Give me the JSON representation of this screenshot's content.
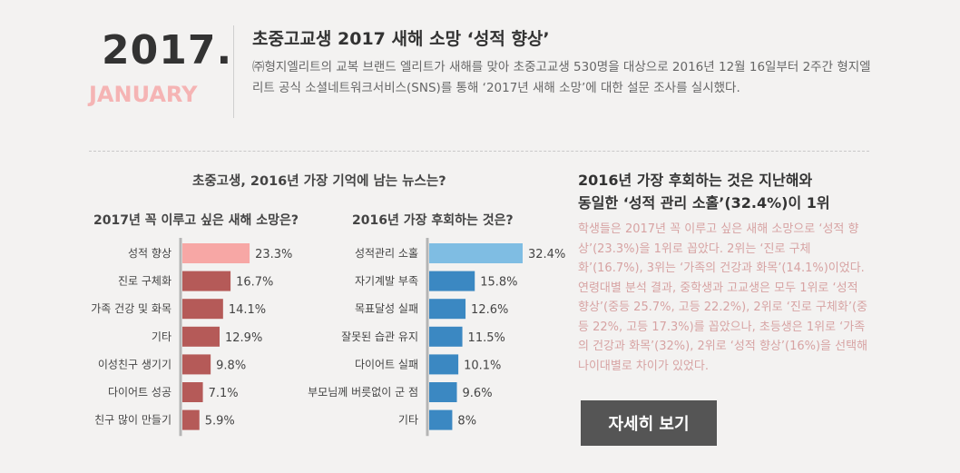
{
  "header": {
    "year": "2017.",
    "month": "JANUARY",
    "title": "초중고교생 2017 새해 소망 ‘성적 향상’",
    "description": "㈜형지엘리트의 교복 브랜드 엘리트가 새해를 맞아 초중고교생 530명을 대상으로 2016년 12월 16일부터 2주간 형지엘리트 공식 소셜네트워크서비스(SNS)를 통해 ‘2017년 새해 소망’에 대한 설문 조사를 실시했다."
  },
  "news_title": "초중고생, 2016년 가장 기억에 남는 뉴스는?",
  "chart_data": [
    {
      "type": "bar",
      "orientation": "horizontal",
      "title": "2017년 꼭 이루고 싶은 새해 소망은?",
      "categories": [
        "성적 향상",
        "진로 구체화",
        "가족 건강 및 화목",
        "기타",
        "이성친구 생기기",
        "다이어트 성공",
        "친구 많이 만들기"
      ],
      "values": [
        23.3,
        16.7,
        14.1,
        12.9,
        9.8,
        7.1,
        5.9
      ],
      "value_labels": [
        "23.3%",
        "16.7%",
        "14.1%",
        "12.9%",
        "9.8%",
        "7.1%",
        "5.9%"
      ],
      "colors": [
        "#f7a7a5",
        "#b55a58",
        "#b55a58",
        "#b55a58",
        "#b55a58",
        "#b55a58",
        "#b55a58"
      ],
      "xlim": [
        0,
        32.4
      ]
    },
    {
      "type": "bar",
      "orientation": "horizontal",
      "title": "2016년 가장 후회하는 것은?",
      "categories": [
        "성적관리 소홀",
        "자기계발 부족",
        "목표달성 실패",
        "잘못된 습관 유지",
        "다이어트 실패",
        "부모님께 버릇없이 군 점",
        "기타"
      ],
      "values": [
        32.4,
        15.8,
        12.6,
        11.5,
        10.1,
        9.6,
        8
      ],
      "value_labels": [
        "32.4%",
        "15.8%",
        "12.6%",
        "11.5%",
        "10.1%",
        "9.6%",
        "8%"
      ],
      "colors": [
        "#7fbde3",
        "#3b88c2",
        "#3b88c2",
        "#3b88c2",
        "#3b88c2",
        "#3b88c2",
        "#3b88c2"
      ],
      "xlim": [
        0,
        32.4
      ]
    }
  ],
  "right": {
    "title_line1": "2016년 가장 후회하는 것은 지난해와",
    "title_line2": "동일한 ‘성적 관리 소홀’(32.4%)이 1위",
    "description": "학생들은 2017년 꼭 이루고 싶은 새해 소망으로 ‘성적 향상’(23.3%)을 1위로 꼽았다. 2위는 ‘진로 구체화’(16.7%), 3위는 ‘가족의 건강과 화목’(14.1%)이었다. 연령대별 분석 결과, 중학생과 고교생은 모두 1위로 ‘성적 향상’(중등 25.7%, 고등 22.2%), 2위로 ‘진로 구체화’(중등 22%, 고등 17.3%)를 꼽았으나, 초등생은 1위로 ‘가족의 건강과 화목’(32%), 2위로 ‘성적 향상’(16%)을 선택해 나이대별로 차이가 있었다.",
    "button_label": "자세히 보기"
  }
}
